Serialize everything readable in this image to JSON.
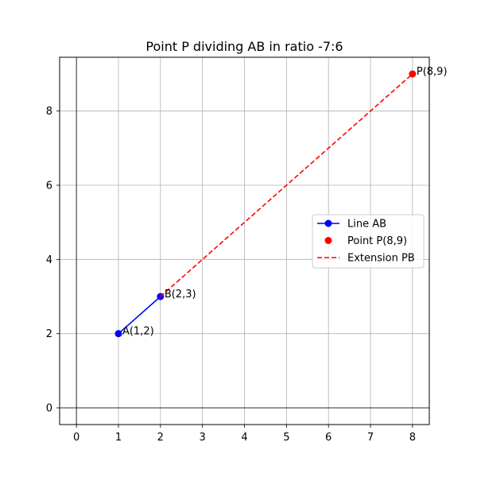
{
  "chart_data": {
    "type": "line",
    "title": "Point P dividing AB in ratio -7:6",
    "xlabel": "",
    "ylabel": "",
    "xlim": [
      -0.4,
      8.4
    ],
    "ylim": [
      -0.45,
      9.45
    ],
    "x_ticks": [
      0,
      1,
      2,
      3,
      4,
      5,
      6,
      7,
      8
    ],
    "y_ticks": [
      0,
      2,
      4,
      6,
      8
    ],
    "grid": true,
    "legend_position": "center-right",
    "series": [
      {
        "name": "Line AB",
        "style": "solid-with-markers",
        "color": "#0000ff",
        "x": [
          1,
          2
        ],
        "y": [
          2,
          3
        ]
      },
      {
        "name": "Point P(8,9)",
        "style": "marker-only",
        "color": "#ff0000",
        "x": [
          8
        ],
        "y": [
          9
        ]
      },
      {
        "name": "Extension PB",
        "style": "dashed",
        "color": "#ff0000",
        "x": [
          2,
          8
        ],
        "y": [
          3,
          9
        ]
      }
    ],
    "annotations": [
      {
        "text": "A(1,2)",
        "x": 1,
        "y": 2
      },
      {
        "text": "B(2,3)",
        "x": 2,
        "y": 3
      },
      {
        "text": "P(8,9)",
        "x": 8,
        "y": 9
      }
    ]
  }
}
